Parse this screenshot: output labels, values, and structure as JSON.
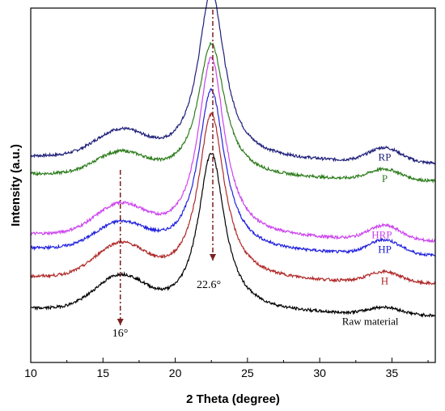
{
  "chart_data": {
    "type": "line",
    "title": "",
    "xlabel": "2 Theta (degree)",
    "ylabel": "Intensity (a.u.)",
    "xlim": [
      10,
      38
    ],
    "ylim": [
      0,
      1
    ],
    "xticks": [
      "10",
      "15",
      "20",
      "25",
      "30",
      "35"
    ],
    "grid": false,
    "legend": "none",
    "y_tick_labels": false,
    "annotations": [
      {
        "text": "16°",
        "x": 16.2
      },
      {
        "text": "22.6°",
        "x": 22.6
      }
    ],
    "series": [
      {
        "name": "RP",
        "color": "#1f1f7a",
        "baseline": 0.58,
        "p16": 0.07,
        "p22": 0.48,
        "p34": 0.04
      },
      {
        "name": "P",
        "color": "#2e7d1e",
        "baseline": 0.53,
        "p16": 0.06,
        "p22": 0.38,
        "p34": 0.03
      },
      {
        "name": "HRP",
        "color": "#cc44ee",
        "baseline": 0.36,
        "p16": 0.08,
        "p22": 0.51,
        "p34": 0.04
      },
      {
        "name": "HP",
        "color": "#2222dd",
        "baseline": 0.32,
        "p16": 0.07,
        "p22": 0.46,
        "p34": 0.04
      },
      {
        "name": "H",
        "color": "#b02a2a",
        "baseline": 0.24,
        "p16": 0.09,
        "p22": 0.47,
        "p34": 0.03
      },
      {
        "name": "Raw material",
        "color": "#000000",
        "baseline": 0.15,
        "p16": 0.09,
        "p22": 0.45,
        "p34": 0.02
      }
    ]
  }
}
